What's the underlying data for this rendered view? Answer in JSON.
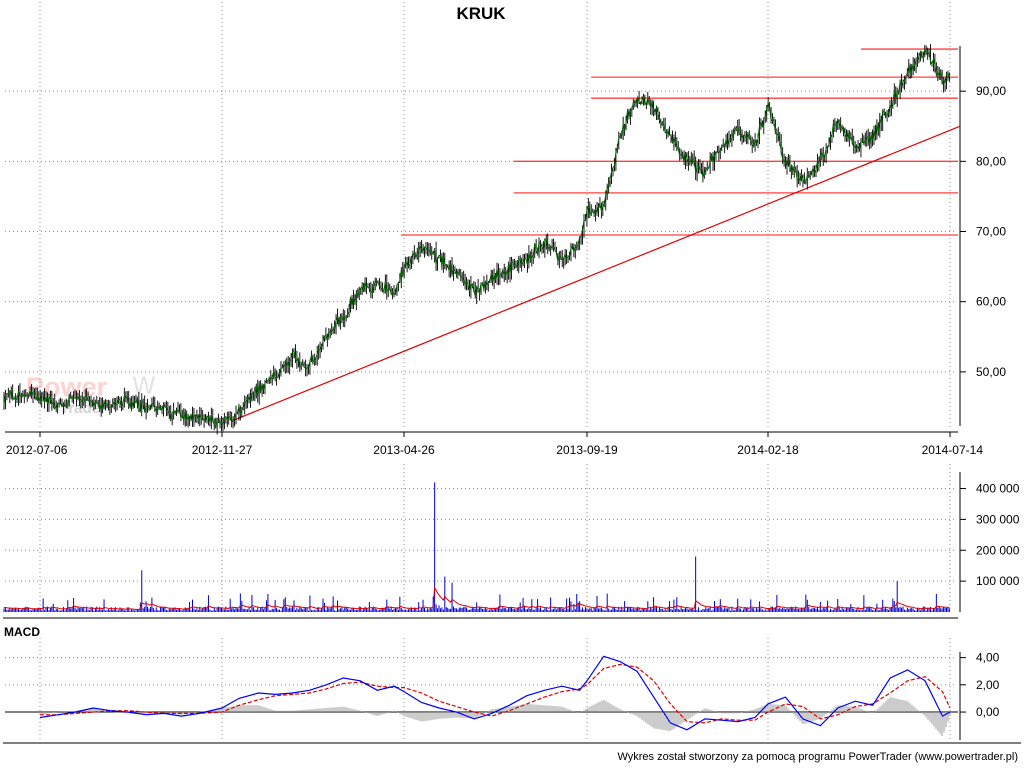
{
  "title": "KRUK",
  "footer": "Wykres został stworzony za pomocą programu PowerTrader (www.powertrader.pl)",
  "watermark": {
    "line1": "Power",
    "line2": "Trader"
  },
  "colors": {
    "price_line": "#006400",
    "support_lines": "#ff4040",
    "trendline": "#e00000",
    "volume_bars": "#0000cc",
    "volume_avg": "#e00000",
    "macd_line": "#0000ff",
    "signal_line": "#e00000",
    "histogram": "#9a9a9a",
    "grid": "#8c8c8c"
  },
  "chart_data": [
    {
      "type": "line",
      "panel": "price",
      "title": "KRUK",
      "x_dates": [
        "2012-07-06",
        "2012-11-27",
        "2013-04-26",
        "2013-09-19",
        "2014-02-18",
        "2014-07-14"
      ],
      "y_ticks": [
        "50,00",
        "60,00",
        "70,00",
        "80,00",
        "90,00"
      ],
      "ylim": [
        42,
        99
      ],
      "grid": true,
      "series": [
        {
          "x": [
            "2012-07-06",
            "2012-07-20",
            "2012-08-03",
            "2012-08-17",
            "2012-08-31",
            "2012-09-14",
            "2012-09-28",
            "2012-10-12",
            "2012-10-26",
            "2012-11-09",
            "2012-11-27",
            "2012-12-11",
            "2012-12-27",
            "2013-01-10",
            "2013-01-24",
            "2013-02-07",
            "2013-02-21",
            "2013-03-07",
            "2013-03-21",
            "2013-04-04",
            "2013-04-18",
            "2013-04-26",
            "2013-05-10",
            "2013-05-24",
            "2013-06-07",
            "2013-06-21",
            "2013-07-05",
            "2013-07-19",
            "2013-08-02",
            "2013-08-16",
            "2013-08-30",
            "2013-09-13",
            "2013-09-19",
            "2013-10-03",
            "2013-10-17",
            "2013-10-31",
            "2013-11-14",
            "2013-11-28",
            "2013-12-12",
            "2013-12-27",
            "2014-01-10",
            "2014-01-24",
            "2014-02-07",
            "2014-02-18",
            "2014-03-04",
            "2014-03-18",
            "2014-04-01",
            "2014-04-15",
            "2014-04-29",
            "2014-05-13",
            "2014-05-27",
            "2014-06-10",
            "2014-06-24",
            "2014-07-08",
            "2014-07-14"
          ],
          "values": [
            46.5,
            45.2,
            46.8,
            45.3,
            45.5,
            45.7,
            45.0,
            44.5,
            43.8,
            43.2,
            42.6,
            44.5,
            47.5,
            49.5,
            52.0,
            51.0,
            55.0,
            58.0,
            62.0,
            62.5,
            61.5,
            65.0,
            68.0,
            66.0,
            64.0,
            61.5,
            63.5,
            65.0,
            66.0,
            68.5,
            66.0,
            68.5,
            72.5,
            73.5,
            84.0,
            89.0,
            88.0,
            83.5,
            80.0,
            78.5,
            82.0,
            84.5,
            82.5,
            88.0,
            80.0,
            77.0,
            80.0,
            86.0,
            82.0,
            83.5,
            88.0,
            93.0,
            96.0,
            91.5,
            92.5
          ]
        }
      ],
      "horizontal_levels": [
        96.0,
        92.0,
        89.0,
        80.0,
        75.5,
        69.5
      ],
      "trendline": {
        "from": [
          "2012-12-05",
          43.0
        ],
        "to": [
          "2014-07-14",
          85.0
        ]
      }
    },
    {
      "type": "bar",
      "panel": "volume",
      "y_ticks": [
        "100 000",
        "200 000",
        "300 000",
        "400 000"
      ],
      "ylim": [
        0,
        460000
      ],
      "spikes": [
        {
          "x": "2012-09-25",
          "value": 135000
        },
        {
          "x": "2012-12-12",
          "value": 60000
        },
        {
          "x": "2013-05-20",
          "value": 420000
        },
        {
          "x": "2013-05-28",
          "value": 115000
        },
        {
          "x": "2013-06-03",
          "value": 95000
        },
        {
          "x": "2013-12-19",
          "value": 180000
        },
        {
          "x": "2014-06-02",
          "value": 100000
        }
      ]
    },
    {
      "type": "line",
      "panel": "macd",
      "title": "MACD",
      "y_ticks": [
        "0,00",
        "2,00",
        "4,00"
      ],
      "ylim": [
        -2.2,
        5.0
      ],
      "series": [
        {
          "values": [
            -0.4,
            -0.2,
            0.0,
            0.3,
            0.1,
            0.0,
            -0.2,
            -0.1,
            -0.3,
            -0.1,
            0.3,
            1.0,
            1.4,
            1.3,
            1.4,
            1.6,
            2.0,
            2.5,
            2.3,
            1.6,
            1.9,
            1.5,
            0.7,
            0.3,
            0.0,
            -0.5,
            -0.1,
            0.5,
            1.2,
            1.6,
            1.9,
            1.6,
            2.3,
            4.1,
            3.7,
            3.0,
            1.1,
            -0.8,
            -1.3,
            -0.5,
            -0.6,
            -0.7,
            -0.4,
            0.6,
            1.1,
            -0.5,
            -1.0,
            0.3,
            0.8,
            0.5,
            2.5,
            3.1,
            2.3,
            -0.3,
            0.0
          ]
        },
        {
          "values": [
            -0.2,
            -0.2,
            -0.1,
            0.0,
            0.1,
            0.1,
            0.0,
            -0.1,
            -0.1,
            -0.1,
            0.0,
            0.5,
            0.9,
            1.2,
            1.3,
            1.4,
            1.7,
            2.1,
            2.2,
            1.9,
            1.8,
            1.8,
            1.4,
            0.8,
            0.4,
            0.0,
            -0.3,
            0.1,
            0.6,
            1.1,
            1.5,
            1.7,
            2.0,
            3.2,
            3.5,
            3.3,
            2.3,
            0.6,
            -0.7,
            -0.8,
            -0.5,
            -0.6,
            -0.6,
            0.0,
            0.6,
            0.4,
            -0.5,
            -0.2,
            0.4,
            0.6,
            1.4,
            2.3,
            2.6,
            1.5,
            0.3
          ]
        }
      ]
    }
  ]
}
